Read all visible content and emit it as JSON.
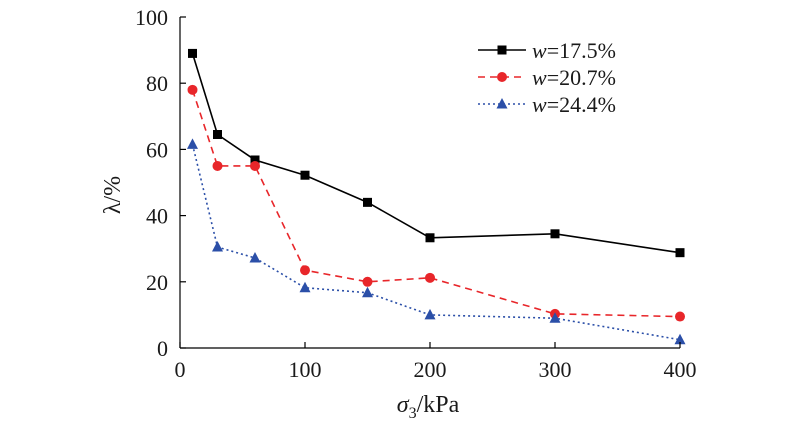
{
  "chart_data": {
    "type": "line",
    "xlabel": "σ3/kPa",
    "xlabel_main": "σ",
    "xlabel_sub": "3",
    "xlabel_rest": "/kPa",
    "ylabel": "λ/%",
    "xlim": [
      0,
      400
    ],
    "ylim": [
      0,
      100
    ],
    "xticks": [
      0,
      100,
      200,
      300,
      400
    ],
    "yticks": [
      0,
      20,
      40,
      60,
      80,
      100
    ],
    "x": [
      10,
      30,
      60,
      100,
      150,
      200,
      300,
      400
    ],
    "grid": false,
    "legend_position": "top-right",
    "series": [
      {
        "name": "w=17.5%",
        "name_var": "w",
        "name_rest": "=17.5%",
        "color": "#000000",
        "line": "solid",
        "marker": "square",
        "values": [
          89,
          64.5,
          56.8,
          52.2,
          44,
          33.3,
          34.5,
          28.8
        ]
      },
      {
        "name": "w=20.7%",
        "name_var": "w",
        "name_rest": "=20.7%",
        "color": "#e8262a",
        "line": "dashed",
        "marker": "circle",
        "values": [
          78,
          55,
          55,
          23.5,
          20,
          21.2,
          10.3,
          9.5
        ]
      },
      {
        "name": "w=24.4%",
        "name_var": "w",
        "name_rest": "=24.4%",
        "color": "#2b4fa8",
        "line": "dotted",
        "marker": "triangle",
        "values": [
          61.5,
          30.5,
          27.2,
          18.2,
          16.7,
          10,
          9,
          2.5
        ]
      }
    ]
  }
}
